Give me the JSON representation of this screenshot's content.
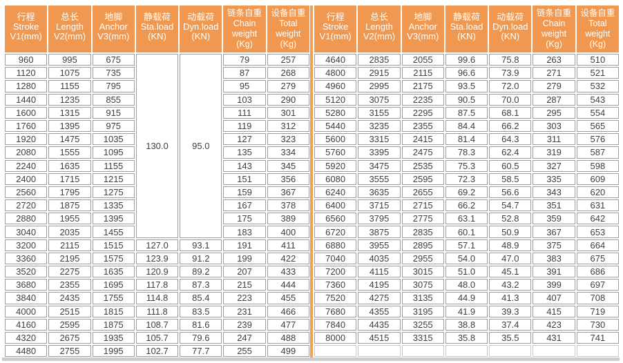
{
  "colors": {
    "header_bg": "#F09850",
    "header_text": "#FFFFFF",
    "cell_border": "#9C9C9C",
    "empty_cell_border": "#C9C9C9",
    "cell_text": "#3E3E3E",
    "divider": "#F0A052",
    "bottom_edge": "#CCCCCC",
    "page_bg": "#FFFFFF"
  },
  "columns": [
    {
      "key": "stroke",
      "lines": [
        "行程",
        "Stroke",
        "V1(mm)"
      ]
    },
    {
      "key": "length",
      "lines": [
        "总长",
        "Length",
        "V2(mm)"
      ]
    },
    {
      "key": "anchor",
      "lines": [
        "地脚",
        "Anchor",
        "V3(mm)"
      ]
    },
    {
      "key": "static-load",
      "lines": [
        "静载荷",
        "Sta.load",
        "(KN)"
      ]
    },
    {
      "key": "dynamic-load",
      "lines": [
        "动载荷",
        "Dyn.load",
        "(KN)"
      ]
    },
    {
      "key": "chain-weight",
      "lines": [
        "链条自重",
        "Chain",
        "weight",
        "(Kg)"
      ]
    },
    {
      "key": "total-weight",
      "lines": [
        "设备自重",
        "Total",
        "weight",
        "(Kg)"
      ]
    }
  ],
  "chart_data": {
    "type": "table",
    "note": "hoist specification table, two side-by-side halves with identical columns"
  },
  "left_table": {
    "merged": {
      "static_load": "130.0",
      "dynamic_load": "95.0",
      "span": 14
    },
    "rows": [
      [
        "960",
        "995",
        "675",
        null,
        null,
        "79",
        "257"
      ],
      [
        "1120",
        "1075",
        "735",
        null,
        null,
        "87",
        "268"
      ],
      [
        "1280",
        "1155",
        "795",
        null,
        null,
        "95",
        "279"
      ],
      [
        "1440",
        "1235",
        "855",
        null,
        null,
        "103",
        "290"
      ],
      [
        "1600",
        "1315",
        "915",
        null,
        null,
        "111",
        "301"
      ],
      [
        "1760",
        "1395",
        "975",
        null,
        null,
        "119",
        "312"
      ],
      [
        "1920",
        "1475",
        "1035",
        null,
        null,
        "127",
        "323"
      ],
      [
        "2080",
        "1555",
        "1095",
        null,
        null,
        "135",
        "334"
      ],
      [
        "2240",
        "1635",
        "1155",
        null,
        null,
        "143",
        "345"
      ],
      [
        "2400",
        "1715",
        "1215",
        null,
        null,
        "151",
        "356"
      ],
      [
        "2560",
        "1795",
        "1275",
        null,
        null,
        "159",
        "367"
      ],
      [
        "2720",
        "1875",
        "1335",
        null,
        null,
        "167",
        "378"
      ],
      [
        "2880",
        "1955",
        "1395",
        null,
        null,
        "175",
        "389"
      ],
      [
        "3040",
        "2035",
        "1455",
        null,
        null,
        "183",
        "400"
      ],
      [
        "3200",
        "2115",
        "1515",
        "127.0",
        "93.1",
        "191",
        "411"
      ],
      [
        "3360",
        "2195",
        "1575",
        "123.9",
        "91.2",
        "199",
        "422"
      ],
      [
        "3520",
        "2275",
        "1635",
        "120.9",
        "89.2",
        "207",
        "433"
      ],
      [
        "3680",
        "2355",
        "1695",
        "117.8",
        "87.3",
        "215",
        "444"
      ],
      [
        "3840",
        "2435",
        "1755",
        "114.8",
        "85.4",
        "223",
        "455"
      ],
      [
        "4000",
        "2515",
        "1815",
        "111.8",
        "83.5",
        "231",
        "466"
      ],
      [
        "4160",
        "2595",
        "1875",
        "108.7",
        "81.6",
        "239",
        "477"
      ],
      [
        "4320",
        "2675",
        "1935",
        "105.7",
        "79.6",
        "247",
        "488"
      ],
      [
        "4480",
        "2755",
        "1995",
        "102.7",
        "77.7",
        "255",
        "499"
      ]
    ]
  },
  "right_table": {
    "rows": [
      [
        "4640",
        "2835",
        "2055",
        "99.6",
        "75.8",
        "263",
        "510"
      ],
      [
        "4800",
        "2915",
        "2115",
        "96.6",
        "73.9",
        "271",
        "521"
      ],
      [
        "4960",
        "2995",
        "2175",
        "93.5",
        "72.0",
        "279",
        "532"
      ],
      [
        "5120",
        "3075",
        "2235",
        "90.5",
        "70.0",
        "287",
        "543"
      ],
      [
        "5280",
        "3155",
        "2295",
        "87.5",
        "68.1",
        "295",
        "554"
      ],
      [
        "5440",
        "3235",
        "2355",
        "84.4",
        "66.2",
        "303",
        "565"
      ],
      [
        "5600",
        "3315",
        "2415",
        "81.4",
        "64.3",
        "311",
        "576"
      ],
      [
        "5760",
        "3395",
        "2475",
        "78.3",
        "62.4",
        "319",
        "587"
      ],
      [
        "5920",
        "3475",
        "2535",
        "75.3",
        "60.5",
        "327",
        "598"
      ],
      [
        "6080",
        "3555",
        "2595",
        "72.3",
        "58.5",
        "335",
        "609"
      ],
      [
        "6240",
        "3635",
        "2655",
        "69.2",
        "56.6",
        "343",
        "620"
      ],
      [
        "6400",
        "3715",
        "2715",
        "66.2",
        "54.7",
        "351",
        "631"
      ],
      [
        "6560",
        "3795",
        "2775",
        "63.1",
        "52.8",
        "359",
        "642"
      ],
      [
        "6720",
        "3875",
        "2835",
        "60.1",
        "50.9",
        "367",
        "653"
      ],
      [
        "6880",
        "3955",
        "2895",
        "57.1",
        "48.9",
        "375",
        "664"
      ],
      [
        "7040",
        "4035",
        "2955",
        "54.0",
        "47.0",
        "383",
        "675"
      ],
      [
        "7200",
        "4115",
        "3015",
        "51.0",
        "45.1",
        "391",
        "686"
      ],
      [
        "7360",
        "4195",
        "3075",
        "48.0",
        "43.2",
        "399",
        "697"
      ],
      [
        "7520",
        "4275",
        "3135",
        "44.9",
        "41.3",
        "407",
        "708"
      ],
      [
        "7680",
        "4355",
        "3195",
        "41.9",
        "39.3",
        "415",
        "719"
      ],
      [
        "7840",
        "4435",
        "3255",
        "38.8",
        "37.4",
        "423",
        "730"
      ],
      [
        "8000",
        "4515",
        "3315",
        "35.8",
        "35.5",
        "431",
        "741"
      ],
      [
        "",
        "",
        "",
        "",
        "",
        "",
        ""
      ]
    ]
  }
}
